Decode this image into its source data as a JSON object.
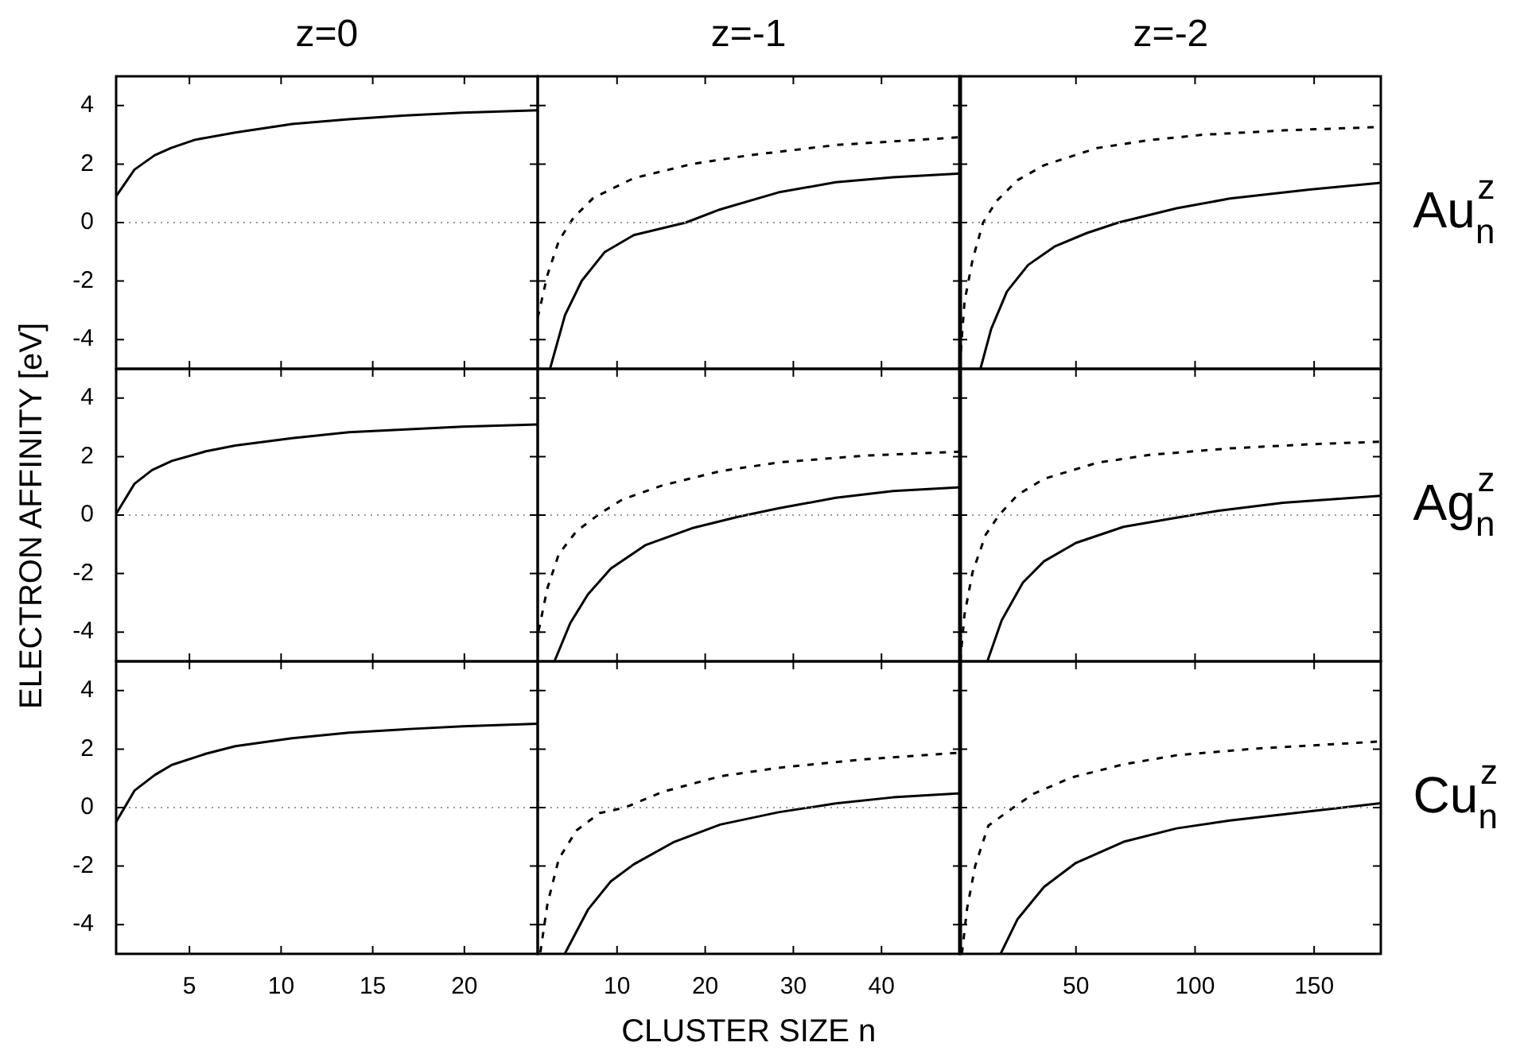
{
  "chart_data": [
    {
      "type": "line",
      "title": "z=0",
      "xlim": [
        1,
        24
      ],
      "xticks": [
        5,
        10,
        15,
        20
      ],
      "ylim": [
        -5,
        5
      ],
      "yticks": [
        -4,
        -2,
        0,
        2,
        4
      ],
      "tick_labels": "y",
      "ref_lines": [
        {
          "axis": "y",
          "value": 0,
          "color": "#999999",
          "line_style": "dotted"
        }
      ],
      "series": [
        {
          "color": "#000000",
          "line_style": "solid",
          "x": [
            1,
            2,
            3.1,
            4,
            5.3,
            7.5,
            10.6,
            13.7,
            16.8,
            19.9,
            24
          ],
          "values": [
            0.9,
            1.81,
            2.3,
            2.55,
            2.83,
            3.08,
            3.37,
            3.53,
            3.66,
            3.76,
            3.84
          ]
        }
      ]
    },
    {
      "type": "line",
      "title": "z=-1",
      "xlim": [
        1,
        49
      ],
      "xticks": [
        10,
        20,
        30,
        40
      ],
      "ylim": [
        -5,
        5
      ],
      "yticks": [
        -4,
        -2,
        0,
        2,
        4
      ],
      "tick_labels": false,
      "ref_lines": [
        {
          "axis": "y",
          "value": 0,
          "color": "#999999",
          "line_style": "dotted"
        }
      ],
      "series": [
        {
          "color": "#000000",
          "line_style": "solid",
          "x": [
            2.4,
            4.1,
            6,
            8.6,
            11.9,
            17.8,
            21.7,
            28.3,
            34.8,
            41.3,
            49
          ],
          "values": [
            -5,
            -3.16,
            -1.99,
            -1.01,
            -0.43,
            0,
            0.45,
            1.03,
            1.38,
            1.55,
            1.68
          ]
        },
        {
          "color": "#000000",
          "line_style": "dashed",
          "x": [
            1,
            2.1,
            3.4,
            5.05,
            7.3,
            11.9,
            18.5,
            25,
            34.8,
            49
          ],
          "values": [
            -3.25,
            -1.8,
            -0.62,
            0.16,
            0.84,
            1.52,
            2,
            2.3,
            2.65,
            2.92
          ]
        }
      ]
    },
    {
      "type": "line",
      "title": "z=-2",
      "xlim": [
        1,
        178
      ],
      "xticks": [
        50,
        100,
        150
      ],
      "ylim": [
        -5,
        5
      ],
      "yticks": [
        -4,
        -2,
        0,
        2,
        4
      ],
      "tick_labels": false,
      "annotations": [
        "Au$_{n}$$^{z}$"
      ],
      "ref_lines": [
        {
          "axis": "y",
          "value": 0,
          "color": "#999999",
          "line_style": "dotted"
        }
      ],
      "series": [
        {
          "color": "#000000",
          "line_style": "solid",
          "x": [
            9.9,
            14.4,
            21,
            29.9,
            41,
            54.5,
            67.8,
            92.3,
            114.6,
            148,
            178
          ],
          "values": [
            -5,
            -3.64,
            -2.36,
            -1.45,
            -0.82,
            -0.36,
            0,
            0.49,
            0.82,
            1.13,
            1.36
          ]
        },
        {
          "color": "#000000",
          "line_style": "dashed",
          "x": [
            1.2,
            3.2,
            6.6,
            11,
            16.6,
            25.5,
            36.6,
            58.9,
            81,
            103,
            136.9,
            178
          ],
          "values": [
            -4.9,
            -2.7,
            -1.27,
            0,
            0.73,
            1.45,
            1.96,
            2.55,
            2.82,
            3,
            3.15,
            3.27
          ]
        }
      ]
    },
    {
      "type": "line",
      "ylabel": "ELECTRON AFFINITY [eV]",
      "xlim": [
        1,
        24
      ],
      "xticks": [
        5,
        10,
        15,
        20
      ],
      "ylim": [
        -5,
        5
      ],
      "yticks": [
        -4,
        -2,
        0,
        2,
        4
      ],
      "tick_labels": "y",
      "ref_lines": [
        {
          "axis": "y",
          "value": 0,
          "color": "#999999",
          "line_style": "dotted"
        }
      ],
      "series": [
        {
          "color": "#000000",
          "line_style": "solid",
          "x": [
            1,
            2,
            2.96,
            4.04,
            5.9,
            7.5,
            10.6,
            13.7,
            16.8,
            19.9,
            24
          ],
          "values": [
            0.04,
            1.07,
            1.54,
            1.85,
            2.18,
            2.38,
            2.63,
            2.83,
            2.93,
            3.02,
            3.1
          ]
        }
      ]
    },
    {
      "type": "line",
      "xlim": [
        1,
        49
      ],
      "xticks": [
        10,
        20,
        30,
        40
      ],
      "ylim": [
        -5,
        5
      ],
      "yticks": [
        -4,
        -2,
        0,
        2,
        4
      ],
      "tick_labels": false,
      "ref_lines": [
        {
          "axis": "y",
          "value": 0,
          "color": "#999999",
          "line_style": "dotted"
        }
      ],
      "series": [
        {
          "color": "#000000",
          "line_style": "solid",
          "x": [
            2.9,
            4.7,
            6.7,
            9.3,
            13.2,
            18.5,
            23.7,
            28.3,
            34.8,
            41.3,
            49
          ],
          "values": [
            -5,
            -3.69,
            -2.71,
            -1.83,
            -1.03,
            -0.45,
            -0.06,
            0.23,
            0.59,
            0.82,
            0.95
          ]
        },
        {
          "color": "#000000",
          "line_style": "dashed",
          "x": [
            1.1,
            2.1,
            3.4,
            5.4,
            8,
            10.6,
            15.2,
            21.7,
            28.3,
            38,
            49
          ],
          "values": [
            -3.96,
            -2.5,
            -1.33,
            -0.55,
            0.04,
            0.53,
            1.02,
            1.5,
            1.8,
            2.03,
            2.17
          ]
        }
      ]
    },
    {
      "type": "line",
      "xlim": [
        1,
        178
      ],
      "xticks": [
        50,
        100,
        150
      ],
      "ylim": [
        -5,
        5
      ],
      "yticks": [
        -4,
        -2,
        0,
        2,
        4
      ],
      "tick_labels": false,
      "annotations": [
        "Ag$_{n}$$^{z}$"
      ],
      "ref_lines": [
        {
          "axis": "y",
          "value": 0,
          "color": "#999999",
          "line_style": "dotted"
        }
      ],
      "series": [
        {
          "color": "#000000",
          "line_style": "solid",
          "x": [
            12.8,
            18.8,
            27.7,
            36.6,
            50,
            70,
            92.3,
            110,
            137,
            178
          ],
          "values": [
            -5,
            -3.6,
            -2.31,
            -1.58,
            -0.95,
            -0.4,
            -0.09,
            0.15,
            0.42,
            0.66
          ]
        },
        {
          "color": "#000000",
          "line_style": "dashed",
          "x": [
            1.4,
            3.2,
            6.6,
            12.1,
            17.7,
            25.5,
            36.6,
            59,
            81,
            114.6,
            148,
            178
          ],
          "values": [
            -5,
            -3.4,
            -1.95,
            -0.67,
            0,
            0.69,
            1.24,
            1.79,
            2.06,
            2.28,
            2.42,
            2.51
          ]
        }
      ]
    },
    {
      "type": "line",
      "xlim": [
        1,
        24
      ],
      "xticks": [
        5,
        10,
        15,
        20
      ],
      "ylim": [
        -5,
        5
      ],
      "yticks": [
        -4,
        -2,
        0,
        2,
        4
      ],
      "ref_lines": [
        {
          "axis": "y",
          "value": 0,
          "color": "#999999",
          "line_style": "dotted"
        }
      ],
      "series": [
        {
          "color": "#000000",
          "line_style": "solid",
          "x": [
            1,
            2,
            3.1,
            4.04,
            5.9,
            7.5,
            10.6,
            13.7,
            16.8,
            19.9,
            24
          ],
          "values": [
            -0.49,
            0.58,
            1.11,
            1.46,
            1.84,
            2.1,
            2.37,
            2.56,
            2.68,
            2.78,
            2.87
          ]
        }
      ]
    },
    {
      "type": "line",
      "xlabel": "CLUSTER SIZE n",
      "xlim": [
        1,
        49
      ],
      "xticks": [
        10,
        20,
        30,
        40
      ],
      "ylim": [
        -5,
        5
      ],
      "yticks": [
        -4,
        -2,
        0,
        2,
        4
      ],
      "tick_labels": "x",
      "ref_lines": [
        {
          "axis": "y",
          "value": 0,
          "color": "#999999",
          "line_style": "dotted"
        }
      ],
      "series": [
        {
          "color": "#000000",
          "line_style": "solid",
          "x": [
            4.07,
            6.7,
            9.3,
            11.9,
            16.5,
            21.7,
            28.3,
            34.8,
            41.3,
            49
          ],
          "values": [
            -5,
            -3.49,
            -2.52,
            -1.94,
            -1.17,
            -0.58,
            -0.16,
            0.14,
            0.35,
            0.49
          ]
        },
        {
          "color": "#000000",
          "line_style": "dashed",
          "x": [
            1.3,
            2.1,
            3.4,
            5.4,
            8,
            10.9,
            15.2,
            21.7,
            28.3,
            38,
            49
          ],
          "values": [
            -4.95,
            -3.3,
            -1.75,
            -0.78,
            -0.19,
            0,
            0.54,
            1.07,
            1.36,
            1.65,
            1.88
          ]
        }
      ]
    },
    {
      "type": "line",
      "xlim": [
        1,
        178
      ],
      "xticks": [
        50,
        100,
        150
      ],
      "ylim": [
        -5,
        5
      ],
      "yticks": [
        -4,
        -2,
        0,
        2,
        4
      ],
      "tick_labels": "x",
      "annotations": [
        "Cu$_{n}$$^{z}$"
      ],
      "ref_lines": [
        {
          "axis": "y",
          "value": 0,
          "color": "#999999",
          "line_style": "dotted"
        }
      ],
      "series": [
        {
          "color": "#000000",
          "line_style": "solid",
          "x": [
            18.4,
            25.5,
            36.6,
            50,
            70,
            92.3,
            114.6,
            148,
            178
          ],
          "values": [
            -4.99,
            -3.81,
            -2.71,
            -1.89,
            -1.17,
            -0.71,
            -0.44,
            -0.13,
            0.15
          ]
        },
        {
          "color": "#000000",
          "line_style": "dashed",
          "x": [
            2.1,
            4.3,
            7.7,
            13.2,
            23.3,
            32.2,
            47.8,
            70,
            92.3,
            126,
            178
          ],
          "values": [
            -4.99,
            -3.44,
            -1.99,
            -0.62,
            -0.02,
            0.47,
            1.02,
            1.48,
            1.79,
            2.02,
            2.26
          ]
        }
      ]
    }
  ]
}
